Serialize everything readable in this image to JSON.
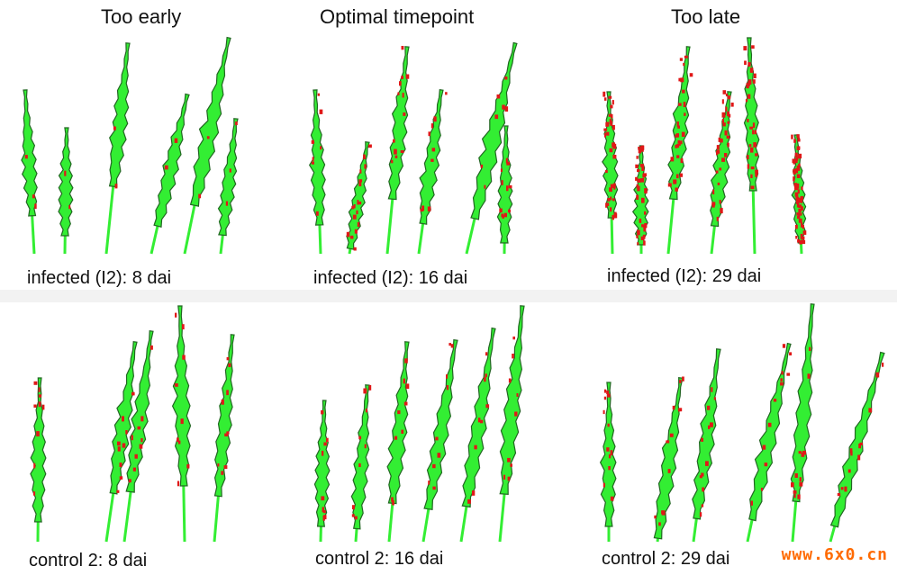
{
  "headers": {
    "col1": "Too early",
    "col2": "Optimal timepoint",
    "col3": "Too late"
  },
  "captions": {
    "infected_8": "infected (I2): 8 dai",
    "infected_16": "infected (I2): 16 dai",
    "infected_29": "infected (I2): 29 dai",
    "control_8": "control 2: 8 dai",
    "control_16": "control 2: 16 dai",
    "control_29": "control 2: 29 dai"
  },
  "watermark": "www.6x0.cn",
  "colors": {
    "plant_green": "#33ee33",
    "outline": "#226622",
    "lesion_red": "#e01818",
    "background": "#ffffff"
  }
}
